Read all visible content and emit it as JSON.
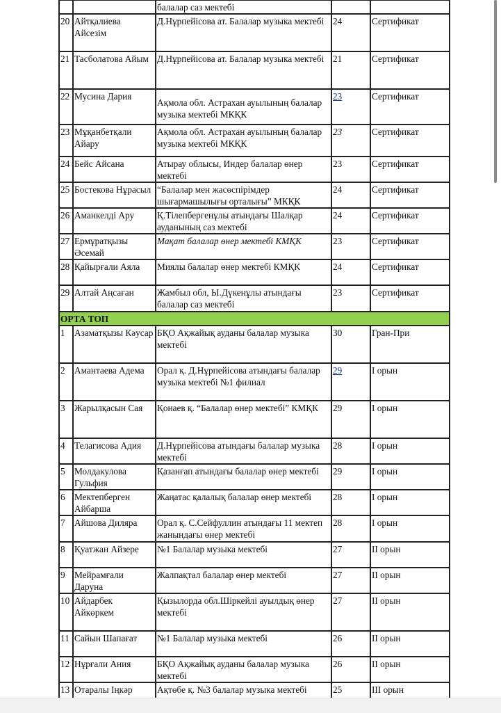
{
  "top_partial": {
    "school": "балалар саз мектебі"
  },
  "rows_a": [
    {
      "no": "20",
      "name": "Айтқалиева Айсезім",
      "school": "Д.Нұрпейісова ат. Балалар музыка мектебі",
      "score": "24",
      "award": "Сертификат"
    },
    {
      "no": "21",
      "name": "Тасболатова Айым",
      "school": "Д.Нұрпейісова ат. Балалар музыка мектебі",
      "score": "21",
      "award": "Сертификат"
    },
    {
      "no": "22",
      "name": "Мусина Дария",
      "school": "Ақмола обл. Астрахан ауылының балалар музыка мектебі МКҚК",
      "score": "23",
      "award": "Сертификат",
      "score_style": "link",
      "school_pad": true
    },
    {
      "no": "23",
      "name": "Мұқанбетқали Айару",
      "school": "Ақмола обл. Астрахан ауылының балалар музыка мектебі МКҚК",
      "score": "23",
      "award": "Сертификат",
      "score_style": "italic"
    },
    {
      "no": "24",
      "name": "Бейс Айсана",
      "school": "Атырау облысы, Индер балалар өнер мектебі",
      "score": "23",
      "award": "Сертификат"
    },
    {
      "no": "25",
      "name": "Бостекова Нұрасыл",
      "school": "“Балалар мен жасөспірімдер шығармашылығы орталығы” МКҚК",
      "score": "24",
      "award": "Сертификат"
    },
    {
      "no": "26",
      "name": "Аманкелді Ару",
      "school": "Қ.Тілепбергенұлы атындағы Шалқар ауданының саз мектебі",
      "score": "24",
      "award": "Сертификат"
    },
    {
      "no": "27",
      "name": "Ермұратқызы Әсемай",
      "school": "Мақат балалар өнер мектебі КМҚК",
      "score": "23",
      "award": "Сертификат",
      "school_style": "italic"
    },
    {
      "no": "28",
      "name": "Қайырғали Аяла",
      "school": "Миялы балалар өнер мектебі КМҚК",
      "score": "24",
      "award": "Сертификат"
    },
    {
      "no": "29",
      "name": "Алтай Аңсаған",
      "school": "Жамбыл обл, Ы.Дүкенұлы атындағы балалар саз мектебі",
      "score": "23",
      "award": "Сертификат"
    }
  ],
  "section": {
    "title": "ОРТА ТОП",
    "color": "#92d050"
  },
  "rows_b": [
    {
      "no": "1",
      "name": "Азаматқызы Кәусар",
      "school": "БҚО  Ақжайық ауданы балалар музыка мектебі",
      "score": "30",
      "award": "Гран-При"
    },
    {
      "no": "2",
      "name": "Амантаева Адема",
      "school": "Орал қ. Д.Нұрпейісова атындағы балалар музыка мектебі №1 филиал",
      "score": "29",
      "award": "I орын",
      "score_style": "link"
    },
    {
      "no": "3",
      "name": "Жарылқасын Сая",
      "school": "Қонаев қ. “Балалар өнер мектебі” КМҚК",
      "score": "29",
      "award": "I орын"
    },
    {
      "no": "4",
      "name": "Телагисова Адия",
      "school": "Д.Нұрпейісова атындағы балалар музыка мектебі",
      "score": "28",
      "award": "I орын"
    },
    {
      "no": "5",
      "name": "Молдакулова Гульфия",
      "school": "Қазанғап атындағы балалар өнер мектебі",
      "score": "29",
      "award": "I орын"
    },
    {
      "no": "6",
      "name": "Мектепберген Айбарша",
      "school": "Жаңатас қалалық балалар өнер мектебі",
      "score": "28",
      "award": "I орын"
    },
    {
      "no": "7",
      "name": "Айшова Диляра",
      "school": "Орал қ. С.Сейфуллин атындағы 11 мектеп жанындағы өнер  мектебі",
      "score": "28",
      "award": "I орын"
    },
    {
      "no": "8",
      "name": "Қуатжан Айзере",
      "school": "№1 Балалар музыка мектебі",
      "score": "27",
      "award": "II орын"
    },
    {
      "no": "9",
      "name": "Мейрамғали Даруна",
      "school": "Жалпақтал балалар өнер мектебі",
      "score": "27",
      "award": "II орын"
    },
    {
      "no": "10",
      "name": "Айдарбек Айкөркем",
      "school": "Қызылорда обл.Шіркейлі ауылдық өнер мектебі",
      "score": "27",
      "award": "II орын"
    },
    {
      "no": "11",
      "name": "Сайын Шапағат",
      "school": "№1 Балалар музыка мектебі",
      "score": "26",
      "award": "II орын"
    },
    {
      "no": "12",
      "name": "Нұрғали Ания",
      "school": "БҚО Ақжайық ауданы балалар музыка мектебі",
      "score": "26",
      "award": "II орын"
    },
    {
      "no": "13",
      "name": "Отаралы Іңкәр",
      "school": "Ақтөбе қ. №3 балалар музыка мектебі",
      "score": "25",
      "award": "III орын"
    }
  ]
}
